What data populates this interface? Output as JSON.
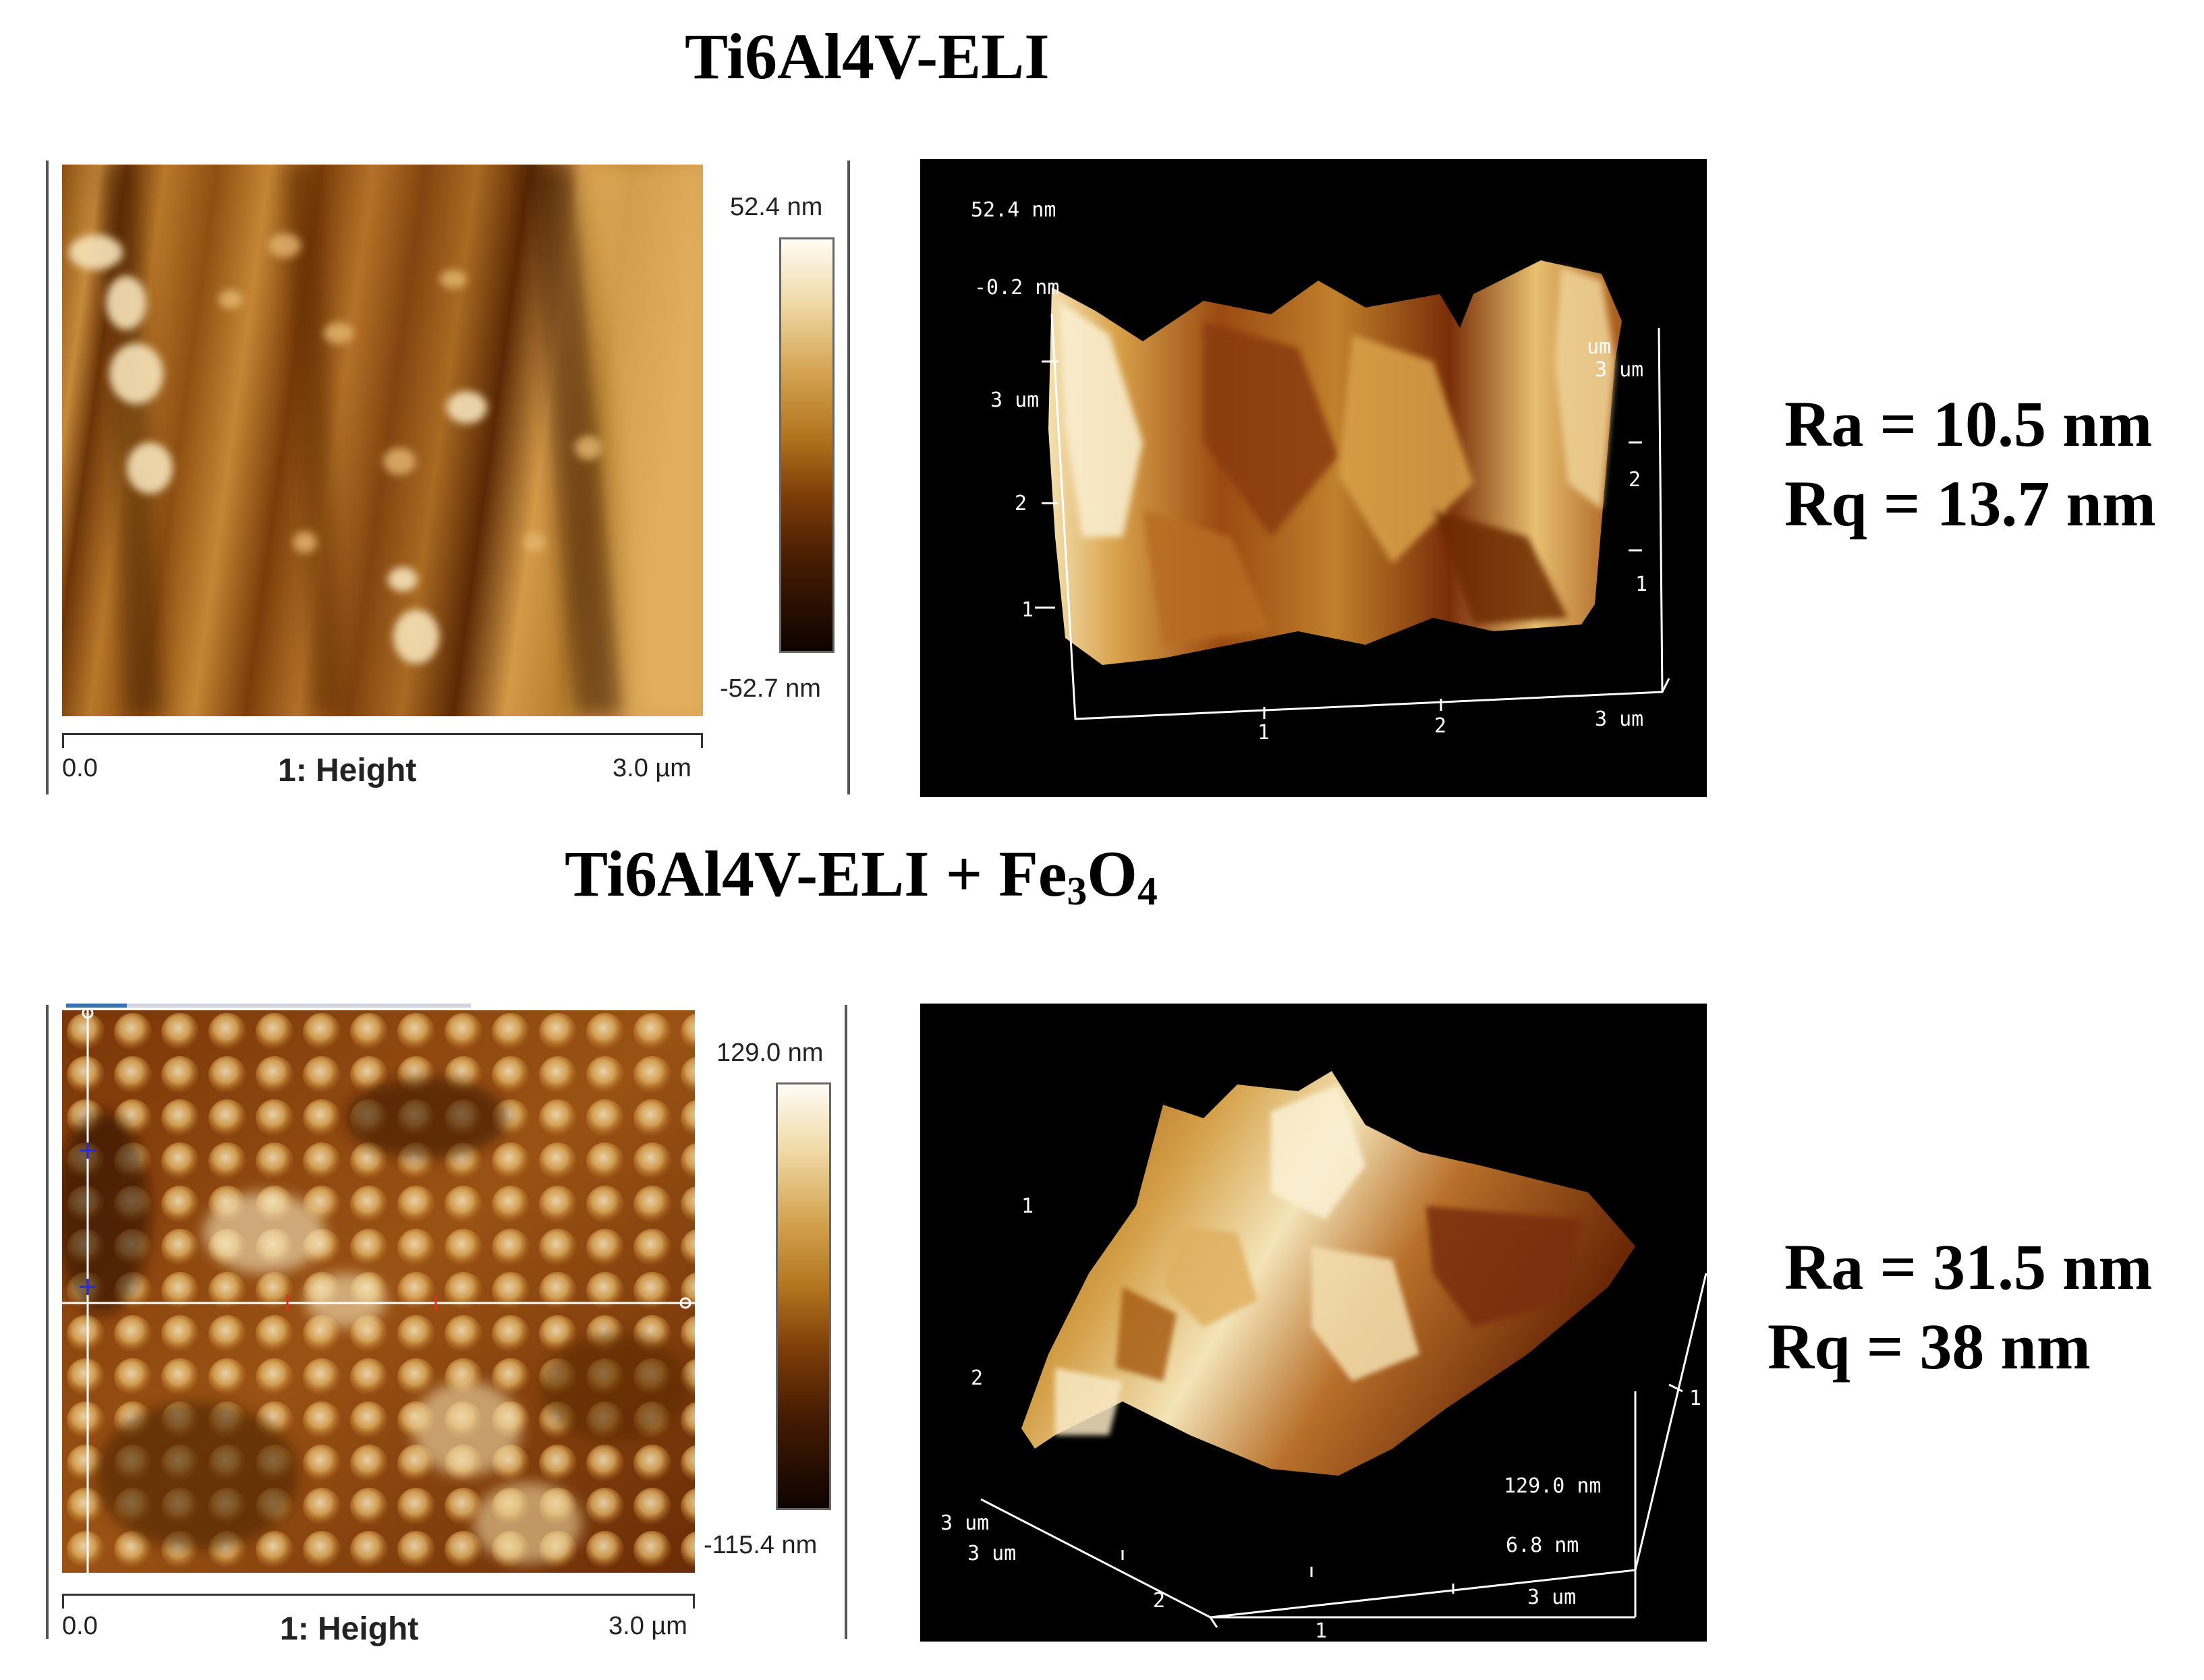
{
  "panels": [
    {
      "title_main": "Ti6Al4V-ELI",
      "colorbar": {
        "max_label": "52.4 nm",
        "min_label": "-52.7 nm"
      },
      "scale": {
        "start": "0.0",
        "channel": "1: Height",
        "end": "3.0 µm"
      },
      "view3d": {
        "z_top": "52.4 nm",
        "z_bottom": "-0.2 nm",
        "y_left": [
          "3 um",
          "2",
          "1"
        ],
        "y_right": [
          "um",
          "3 um",
          "2",
          "1"
        ],
        "x_bottom": [
          "1",
          "2",
          "3 um"
        ]
      },
      "roughness": {
        "ra": "Ra = 10.5 nm",
        "rq": "Rq = 13.7 nm"
      }
    },
    {
      "title_main": "Ti6Al4V-ELI + Fe",
      "title_sub1": "3",
      "title_mid": "O",
      "title_sub2": "4",
      "colorbar": {
        "max_label": "129.0 nm",
        "min_label": "-115.4 nm"
      },
      "scale": {
        "start": "0.0",
        "channel": "1: Height",
        "end": "3.0 µm"
      },
      "view3d": {
        "left_labels": [
          "1",
          "2"
        ],
        "corner_labels": [
          "3 um",
          "3 um"
        ],
        "x_bottom": [
          "2",
          "1"
        ],
        "right_labels": [
          "1"
        ],
        "z_top": "129.0 nm",
        "z_bottom": "6.8 nm",
        "z_corner": "3 um"
      },
      "roughness": {
        "ra": "Ra = 31.5 nm",
        "rq": "Rq = 38 nm"
      }
    }
  ]
}
